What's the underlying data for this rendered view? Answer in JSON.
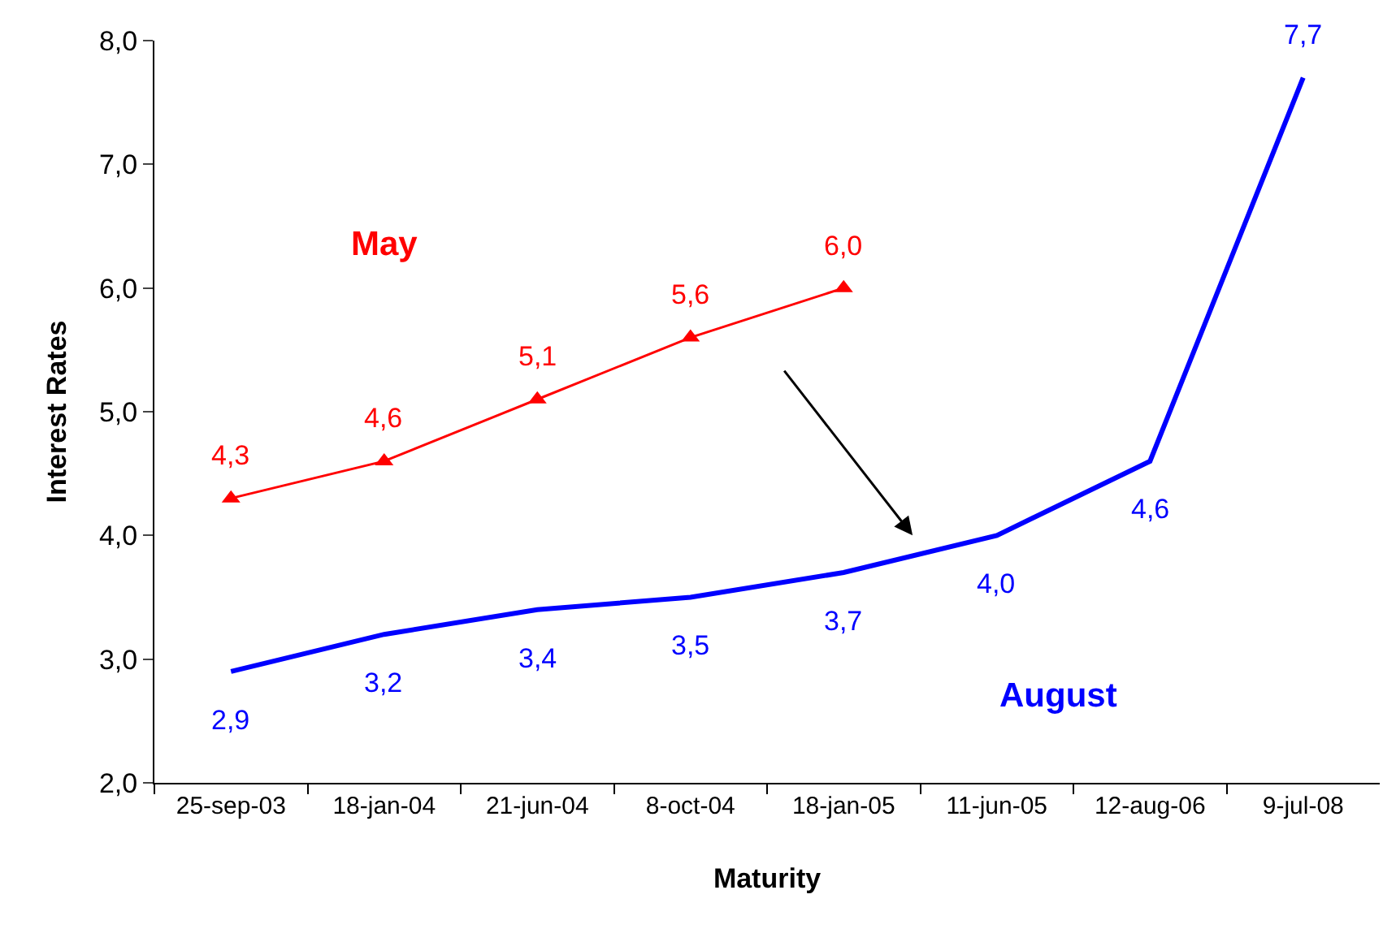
{
  "chart_data": {
    "type": "line",
    "xlabel": "Maturity",
    "ylabel": "Interest Rates",
    "categories": [
      "25-sep-03",
      "18-jan-04",
      "21-jun-04",
      "8-oct-04",
      "18-jan-05",
      "11-jun-05",
      "12-aug-06",
      "9-jul-08"
    ],
    "series": [
      {
        "name": "May",
        "color": "#ff0000",
        "marker": "triangle",
        "values": [
          4.3,
          4.6,
          5.1,
          5.6,
          6.0,
          null,
          null,
          null
        ],
        "value_labels": [
          "4,3",
          "4,6",
          "5,1",
          "5,6",
          "6,0",
          null,
          null,
          null
        ]
      },
      {
        "name": "August",
        "color": "#0000ff",
        "marker": "none",
        "values": [
          2.9,
          3.2,
          3.4,
          3.5,
          3.7,
          4.0,
          4.6,
          7.7
        ],
        "value_labels": [
          "2,9",
          "3,2",
          "3,4",
          "3,5",
          "3,7",
          "4,0",
          "4,6",
          "7,7"
        ]
      }
    ],
    "ylim": [
      2,
      8
    ],
    "yticks": [
      {
        "value": 2,
        "label": "2,0"
      },
      {
        "value": 3,
        "label": "3,0"
      },
      {
        "value": 4,
        "label": "4,0"
      },
      {
        "value": 5,
        "label": "5,0"
      },
      {
        "value": 6,
        "label": "6,0"
      },
      {
        "value": 7,
        "label": "7,0"
      },
      {
        "value": 8,
        "label": "8,0"
      }
    ],
    "legend": false
  }
}
